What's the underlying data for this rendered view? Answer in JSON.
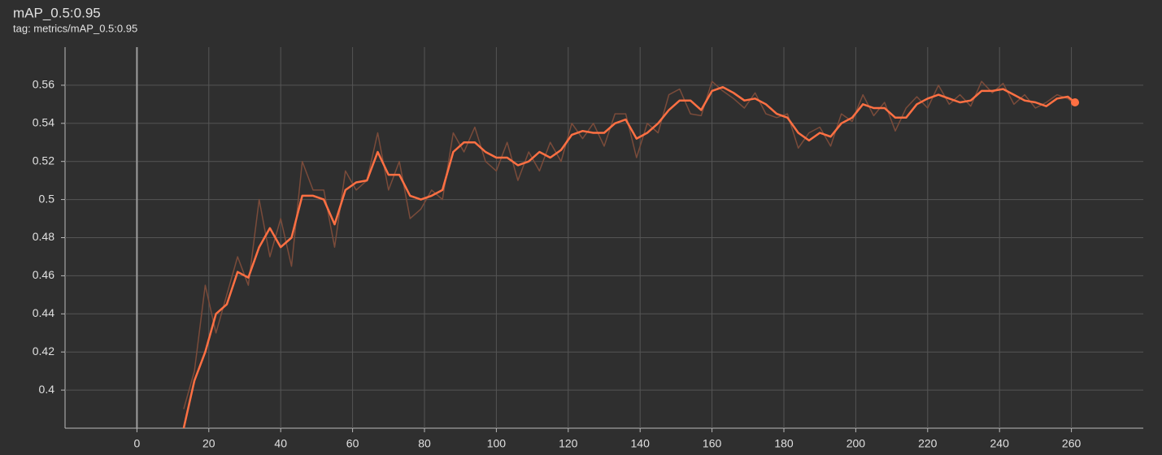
{
  "chart_data": {
    "type": "line",
    "title": "mAP_0.5:0.95",
    "subtitle": "tag: metrics/mAP_0.5:0.95",
    "x": [
      13,
      16,
      19,
      22,
      25,
      28,
      31,
      34,
      37,
      40,
      43,
      46,
      49,
      52,
      55,
      58,
      61,
      64,
      67,
      70,
      73,
      76,
      79,
      82,
      85,
      88,
      91,
      94,
      97,
      100,
      103,
      106,
      109,
      112,
      115,
      118,
      121,
      124,
      127,
      130,
      133,
      136,
      139,
      142,
      145,
      148,
      151,
      154,
      157,
      160,
      163,
      166,
      169,
      172,
      175,
      178,
      181,
      184,
      187,
      190,
      193,
      196,
      199,
      202,
      205,
      208,
      211,
      214,
      217,
      220,
      223,
      226,
      229,
      232,
      235,
      238,
      241,
      244,
      247,
      250,
      253,
      256,
      259,
      261
    ],
    "series": [
      {
        "color": "#7a4b3a",
        "values": [
          0.39,
          0.41,
          0.455,
          0.43,
          0.45,
          0.47,
          0.455,
          0.5,
          0.47,
          0.49,
          0.465,
          0.52,
          0.505,
          0.505,
          0.475,
          0.515,
          0.505,
          0.51,
          0.535,
          0.505,
          0.52,
          0.49,
          0.495,
          0.505,
          0.5,
          0.535,
          0.525,
          0.538,
          0.52,
          0.515,
          0.53,
          0.51,
          0.525,
          0.515,
          0.53,
          0.52,
          0.54,
          0.532,
          0.54,
          0.528,
          0.545,
          0.545,
          0.522,
          0.54,
          0.535,
          0.555,
          0.558,
          0.545,
          0.544,
          0.562,
          0.557,
          0.553,
          0.548,
          0.556,
          0.545,
          0.543,
          0.545,
          0.527,
          0.535,
          0.538,
          0.528,
          0.545,
          0.541,
          0.555,
          0.544,
          0.551,
          0.536,
          0.548,
          0.554,
          0.548,
          0.56,
          0.55,
          0.555,
          0.549,
          0.562,
          0.556,
          0.561,
          0.55,
          0.555,
          0.548,
          0.551,
          0.555,
          0.553,
          0.55
        ]
      },
      {
        "color": "#ff7043",
        "values": [
          0.38,
          0.405,
          0.42,
          0.44,
          0.445,
          0.462,
          0.459,
          0.475,
          0.485,
          0.475,
          0.48,
          0.502,
          0.502,
          0.5,
          0.487,
          0.505,
          0.509,
          0.51,
          0.525,
          0.513,
          0.513,
          0.502,
          0.5,
          0.502,
          0.505,
          0.525,
          0.53,
          0.53,
          0.525,
          0.522,
          0.522,
          0.518,
          0.52,
          0.525,
          0.522,
          0.526,
          0.534,
          0.536,
          0.535,
          0.535,
          0.54,
          0.542,
          0.532,
          0.535,
          0.54,
          0.547,
          0.552,
          0.552,
          0.547,
          0.557,
          0.559,
          0.556,
          0.552,
          0.553,
          0.55,
          0.545,
          0.543,
          0.535,
          0.531,
          0.535,
          0.533,
          0.54,
          0.543,
          0.55,
          0.548,
          0.548,
          0.543,
          0.543,
          0.55,
          0.553,
          0.555,
          0.553,
          0.551,
          0.552,
          0.557,
          0.557,
          0.558,
          0.555,
          0.552,
          0.551,
          0.549,
          0.553,
          0.554,
          0.551
        ]
      }
    ],
    "xlim": [
      -20,
      280
    ],
    "ylim": [
      0.38,
      0.58
    ],
    "xticks": [
      0,
      20,
      40,
      60,
      80,
      100,
      120,
      140,
      160,
      180,
      200,
      220,
      240,
      260
    ],
    "yticks": [
      0.4,
      0.42,
      0.44,
      0.46,
      0.48,
      0.5,
      0.52,
      0.54,
      0.56
    ],
    "grid": true,
    "grid_color": "#555555",
    "zero_line_color": "#9e9e9e"
  }
}
